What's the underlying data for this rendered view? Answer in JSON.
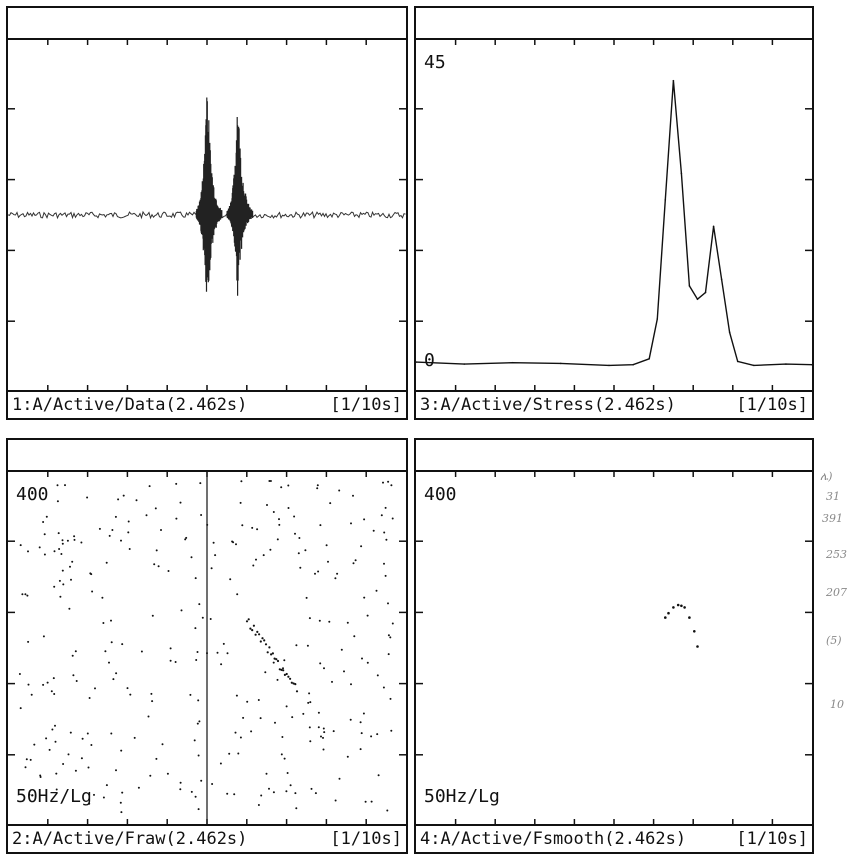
{
  "panels": [
    {
      "id": "p1",
      "label": "1:A/Active/Data(2.462s)",
      "scale": "[1/10s]",
      "ymax": "",
      "ymin": ""
    },
    {
      "id": "p3",
      "label": "3:A/Active/Stress(2.462s)",
      "scale": "[1/10s]",
      "ymax": "45",
      "ymin": "0"
    },
    {
      "id": "p2",
      "label": "2:A/Active/Fraw(2.462s)",
      "scale": "[1/10s]",
      "ymax": "400",
      "ymin": "50Hz/Lg"
    },
    {
      "id": "p4",
      "label": "4:A/Active/Fsmooth(2.462s)",
      "scale": "[1/10s]",
      "ymax": "400",
      "ymin": "50Hz/Lg"
    }
  ],
  "margin_notes": [
    "ሌ)",
    "31",
    "391",
    "253",
    "207",
    "(5)",
    "10"
  ],
  "chart_data": [
    {
      "type": "line",
      "panel": "1:A/Active/Data(2.462s)",
      "x_unit": "s",
      "xlim": [
        0,
        2.462
      ],
      "bursts": [
        {
          "x": 1.23,
          "amplitude_up": 1.0,
          "amplitude_down": 0.72
        },
        {
          "x": 1.42,
          "amplitude_up": 0.86,
          "amplitude_down": 0.55
        }
      ],
      "title": "",
      "xlabel": "",
      "ylabel": ""
    },
    {
      "type": "line",
      "panel": "3:A/Active/Stress(2.462s)",
      "ylim": [
        0,
        45
      ],
      "xlim": [
        0,
        2.462
      ],
      "x": [
        0.0,
        0.3,
        0.6,
        0.9,
        1.2,
        1.35,
        1.45,
        1.5,
        1.55,
        1.6,
        1.65,
        1.7,
        1.75,
        1.8,
        1.85,
        1.9,
        1.95,
        2.0,
        2.1,
        2.3,
        2.462
      ],
      "values": [
        1.5,
        1.2,
        1.4,
        1.3,
        1.0,
        1.1,
        2.0,
        8.0,
        26,
        44,
        30,
        13,
        11,
        12,
        22,
        14,
        6,
        1.6,
        1.0,
        1.2,
        1.1
      ],
      "title": "",
      "xlabel": "",
      "ylabel": ""
    },
    {
      "type": "scatter",
      "panel": "2:A/Active/Fraw(2.462s)",
      "ylim": [
        50,
        400
      ],
      "yscale": "log",
      "xlim": [
        0,
        2.462
      ],
      "description_points": "sparse dots distributed across the panel",
      "title": "",
      "xlabel": "",
      "ylabel": ""
    },
    {
      "type": "scatter",
      "panel": "4:A/Active/Fsmooth(2.462s)",
      "ylim": [
        50,
        400
      ],
      "yscale": "log",
      "xlim": [
        0,
        2.462
      ],
      "x": [
        1.55,
        1.57,
        1.6,
        1.63,
        1.65,
        1.67,
        1.7,
        1.73,
        1.75
      ],
      "values": [
        170,
        175,
        182,
        185,
        184,
        182,
        170,
        155,
        140
      ],
      "title": "",
      "xlabel": "",
      "ylabel": ""
    }
  ]
}
